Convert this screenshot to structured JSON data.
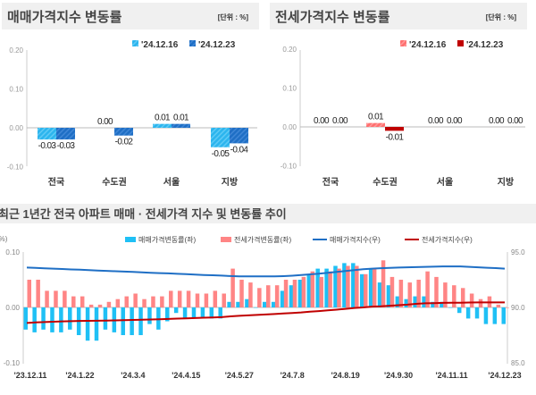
{
  "chart_data": [
    {
      "type": "bar",
      "title": "매매가격지수 변동률",
      "unit": "[단위 : %]",
      "categories": [
        "전국",
        "수도권",
        "서울",
        "지방"
      ],
      "series": [
        {
          "name": "'24.12.16",
          "values": [
            -0.03,
            0.0,
            0.01,
            -0.05
          ],
          "color": "#2cb5ee"
        },
        {
          "name": "'24.12.23",
          "values": [
            -0.03,
            -0.02,
            0.01,
            -0.04
          ],
          "color": "#1f6fc5"
        }
      ],
      "data_labels": [
        [
          "-0.03",
          "0.00",
          "0.01",
          "-0.05"
        ],
        [
          "-0.03",
          "-0.02",
          "0.01",
          "-0.04"
        ]
      ],
      "yticks": [
        "0.20",
        "0.10",
        "0.00",
        "-0.10"
      ],
      "ylim": [
        -0.1,
        0.2
      ],
      "legend": "top-right"
    },
    {
      "type": "bar",
      "title": "전세가격지수 변동률",
      "unit": "[단위 : %]",
      "categories": [
        "전국",
        "수도권",
        "서울",
        "지방"
      ],
      "series": [
        {
          "name": "'24.12.16",
          "values": [
            0.0,
            0.01,
            0.0,
            0.0
          ],
          "color": "#ff6f6f"
        },
        {
          "name": "'24.12.23",
          "values": [
            0.0,
            -0.01,
            0.0,
            0.0
          ],
          "color": "#c00000"
        }
      ],
      "data_labels": [
        [
          "0.00",
          "0.01",
          "0.00",
          "0.00"
        ],
        [
          "0.00",
          "-0.01",
          "0.00",
          "0.00"
        ]
      ],
      "yticks": [
        "0.20",
        "0.10",
        "0.00",
        "-0.10"
      ],
      "ylim": [
        -0.1,
        0.2
      ],
      "legend": "top-right"
    },
    {
      "type": "bar+line",
      "title": "최근 1년간 전국 아파트 매매 · 전세가격 지수 및 변동률 추이",
      "left_unit": "(%)",
      "xtick_labels": [
        "'23.12.11",
        "'24.1.22",
        "'24.3.4",
        "'24.4.15",
        "'24.5.27",
        "'24.7.8",
        "'24.8.19",
        "'24.9.30",
        "'24.11.11",
        "'24.12.23"
      ],
      "yticks_left": [
        "0.10",
        "0.00",
        "-0.10"
      ],
      "ylim_left": [
        -0.1,
        0.1
      ],
      "yticks_right": [
        "95.0",
        "90.0",
        "85.0"
      ],
      "ylim_right": [
        85.0,
        95.0
      ],
      "legend": "top",
      "series": [
        {
          "name": "매매가격변동률(좌)",
          "kind": "bar",
          "axis": "left",
          "color": "#1fc0f5",
          "values": [
            -0.04,
            -0.045,
            -0.04,
            -0.045,
            -0.045,
            -0.04,
            -0.05,
            -0.06,
            -0.06,
            -0.04,
            -0.045,
            -0.05,
            -0.05,
            -0.05,
            -0.03,
            -0.04,
            -0.025,
            -0.01,
            -0.02,
            -0.02,
            -0.02,
            -0.02,
            -0.02,
            0.01,
            0.01,
            0.015,
            0,
            0.01,
            0.01,
            0.03,
            0.04,
            0.05,
            0.06,
            0.07,
            0.07,
            0.075,
            0.08,
            0.08,
            0.06,
            0.07,
            0.045,
            0.04,
            0.02,
            0.015,
            0.02,
            0.02,
            0.01,
            0.01,
            0,
            -0.01,
            -0.02,
            -0.02,
            -0.03,
            -0.03,
            -0.03
          ]
        },
        {
          "name": "전세가격변동률(좌)",
          "kind": "bar",
          "axis": "left",
          "color": "#ff8585",
          "values": [
            0.05,
            0.05,
            0.03,
            0.03,
            0.03,
            0.02,
            0.02,
            0.005,
            0.005,
            0.01,
            0.015,
            0.02,
            0.025,
            0.015,
            0.02,
            0.02,
            0.03,
            0.03,
            0.03,
            0.025,
            0.025,
            0.03,
            0.025,
            0.07,
            0.05,
            0.045,
            0.035,
            0.04,
            0.04,
            0.05,
            0.05,
            0.055,
            0.065,
            0.055,
            0.065,
            0.07,
            0.075,
            0.075,
            0.06,
            0.07,
            0.085,
            0.055,
            0.05,
            0.045,
            0.05,
            0.065,
            0.055,
            0.045,
            0.04,
            0.035,
            0.025,
            0.015,
            0.02,
            0.005,
            0
          ]
        },
        {
          "name": "매매가격지수(우)",
          "kind": "line",
          "axis": "right",
          "color": "#1f6fc5",
          "values": [
            93.6,
            93.57,
            93.53,
            93.5,
            93.47,
            93.43,
            93.4,
            93.37,
            93.33,
            93.3,
            93.27,
            93.23,
            93.2,
            93.17,
            93.13,
            93.1,
            93.07,
            93.03,
            93.0,
            92.97,
            92.93,
            92.9,
            92.87,
            92.83,
            92.8,
            92.8,
            92.8,
            92.8,
            92.8,
            92.82,
            92.86,
            92.92,
            92.98,
            93.05,
            93.12,
            93.2,
            93.28,
            93.36,
            93.44,
            93.5,
            93.54,
            93.57,
            93.6,
            93.62,
            93.64,
            93.66,
            93.68,
            93.7,
            93.7,
            93.7,
            93.66,
            93.62,
            93.58,
            93.55,
            93.5
          ]
        },
        {
          "name": "전세가격지수(우)",
          "kind": "line",
          "axis": "right",
          "color": "#c00000",
          "values": [
            88.6,
            88.65,
            88.68,
            88.71,
            88.74,
            88.76,
            88.78,
            88.79,
            88.8,
            88.81,
            88.83,
            88.85,
            88.87,
            88.89,
            88.91,
            88.93,
            88.96,
            88.99,
            89.02,
            89.04,
            89.07,
            89.1,
            89.12,
            89.19,
            89.24,
            89.28,
            89.32,
            89.36,
            89.4,
            89.45,
            89.5,
            89.55,
            89.62,
            89.67,
            89.73,
            89.8,
            89.87,
            89.95,
            90.0,
            90.07,
            90.1,
            90.15,
            90.2,
            90.25,
            90.32,
            90.37,
            90.39,
            90.41,
            90.42,
            90.43,
            90.44,
            90.45,
            90.45,
            90.45,
            90.45
          ]
        }
      ]
    }
  ]
}
